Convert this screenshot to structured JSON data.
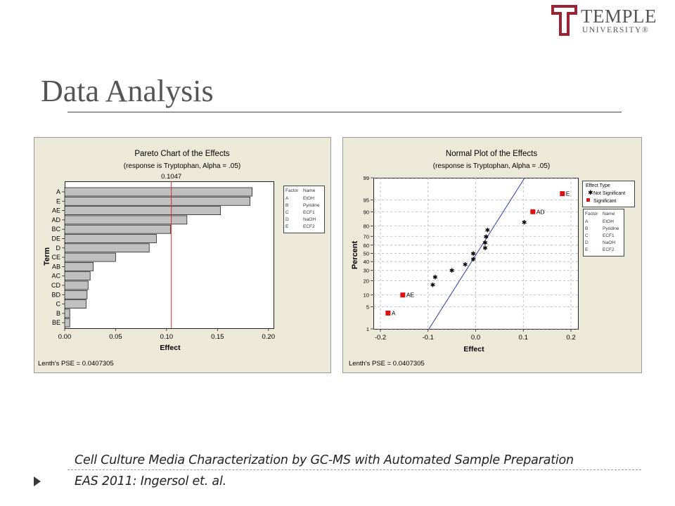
{
  "header": {
    "logo_name": "TEMPLE",
    "logo_sub": "UNIVERSITY®",
    "title": "Data Analysis"
  },
  "footer": {
    "line1": "Cell Culture Media Characterization by GC-MS with Automated Sample Preparation",
    "line2": "EAS 2011: Ingersol et. al."
  },
  "chart_data": [
    {
      "type": "bar",
      "orientation": "horizontal",
      "title": "Pareto Chart of the Effects",
      "subtitle": "(response is Tryptophan, Alpha = .05)",
      "xlabel": "Effect",
      "ylabel": "Term",
      "categories": [
        "A",
        "E",
        "AE",
        "AD",
        "BC",
        "DE",
        "D",
        "CE",
        "AB",
        "AC",
        "CD",
        "BD",
        "C",
        "B",
        "BE"
      ],
      "values": [
        0.184,
        0.182,
        0.153,
        0.12,
        0.104,
        0.09,
        0.083,
        0.05,
        0.028,
        0.025,
        0.023,
        0.022,
        0.021,
        0.005,
        0.005
      ],
      "xlim": [
        0.0,
        0.205
      ],
      "xticks": [
        "0.00",
        "0.05",
        "0.10",
        "0.15",
        "0.20"
      ],
      "reference_line": {
        "value": 0.1047,
        "label": "0.1047",
        "color": "#cc3333"
      },
      "legend_table": {
        "headers": [
          "Factor",
          "Name"
        ],
        "rows": [
          [
            "A",
            "EtOH"
          ],
          [
            "B",
            "Pyridine"
          ],
          [
            "C",
            "ECF1"
          ],
          [
            "D",
            "NaOH"
          ],
          [
            "E",
            "ECF2"
          ]
        ]
      },
      "footnote": "Lenth's PSE = 0.0407305",
      "colors": {
        "bar": "#c0c0c0",
        "bar_edge": "#222222",
        "panel": "#ece9d8"
      }
    },
    {
      "type": "scatter",
      "title": "Normal Plot of the Effects",
      "subtitle": "(response is Tryptophan, Alpha = .05)",
      "xlabel": "Effect",
      "ylabel": "Percent",
      "xlim": [
        -0.2,
        0.2
      ],
      "xticks": [
        "-0.2",
        "-0.1",
        "0.0",
        "0.1",
        "0.2"
      ],
      "yticks": [
        "1",
        "5",
        "10",
        "20",
        "30",
        "40",
        "50",
        "60",
        "70",
        "80",
        "90",
        "95",
        "99"
      ],
      "y_scale": "normal probability",
      "series": [
        {
          "name": "Not Significant",
          "marker": "star",
          "color": "#000000",
          "points": [
            [
              -0.09,
              16.7
            ],
            [
              -0.085,
              23.3
            ],
            [
              -0.05,
              30.0
            ],
            [
              -0.022,
              36.7
            ],
            [
              -0.005,
              43.3
            ],
            [
              -0.005,
              50.0
            ],
            [
              0.02,
              56.7
            ],
            [
              0.02,
              63.3
            ],
            [
              0.022,
              70.0
            ],
            [
              0.025,
              76.7
            ],
            [
              0.102,
              83.3
            ]
          ]
        },
        {
          "name": "Significant",
          "marker": "square",
          "color": "#dd1111",
          "points": [
            [
              -0.184,
              3.3,
              "A"
            ],
            [
              -0.153,
              10.0,
              "AE"
            ],
            [
              0.12,
              90.0,
              "AD"
            ],
            [
              0.182,
              96.7,
              "E"
            ]
          ]
        }
      ],
      "fit_line": {
        "x": [
          -0.098,
          0.103
        ],
        "y": [
          1,
          99
        ],
        "color": "#2a3aa8"
      },
      "legend": {
        "title": "Effect Type",
        "position": "top-right"
      },
      "legend_table": {
        "headers": [
          "Factor",
          "Name"
        ],
        "rows": [
          [
            "A",
            "EtOH"
          ],
          [
            "B",
            "Pyridine"
          ],
          [
            "C",
            "ECF1"
          ],
          [
            "D",
            "NaOH"
          ],
          [
            "E",
            "ECF2"
          ]
        ]
      },
      "footnote": "Lenth's PSE = 0.0407305",
      "colors": {
        "panel": "#ece9d8",
        "grid": "#b0b0b0"
      }
    }
  ]
}
